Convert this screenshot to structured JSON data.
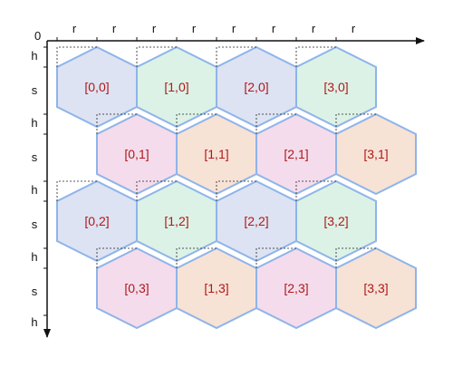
{
  "diagram": {
    "origin_label": "0",
    "top_axis_labels": [
      "r",
      "r",
      "r",
      "r",
      "r",
      "r",
      "r",
      "r"
    ],
    "left_axis_labels": [
      "h",
      "s",
      "h",
      "s",
      "h",
      "s",
      "h",
      "s",
      "h"
    ],
    "cells": [
      {
        "col": 0,
        "row": 0,
        "label": "[0,0]",
        "fill": "#dde3f2"
      },
      {
        "col": 1,
        "row": 0,
        "label": "[1,0]",
        "fill": "#dcf2e6"
      },
      {
        "col": 2,
        "row": 0,
        "label": "[2,0]",
        "fill": "#dde3f2"
      },
      {
        "col": 3,
        "row": 0,
        "label": "[3,0]",
        "fill": "#dcf2e6"
      },
      {
        "col": 0,
        "row": 1,
        "label": "[0,1]",
        "fill": "#f4dcec"
      },
      {
        "col": 1,
        "row": 1,
        "label": "[1,1]",
        "fill": "#f7e2d6"
      },
      {
        "col": 2,
        "row": 1,
        "label": "[2,1]",
        "fill": "#f4dcec"
      },
      {
        "col": 3,
        "row": 1,
        "label": "[3,1]",
        "fill": "#f7e2d6"
      },
      {
        "col": 0,
        "row": 2,
        "label": "[0,2]",
        "fill": "#dde3f2"
      },
      {
        "col": 1,
        "row": 2,
        "label": "[1,2]",
        "fill": "#dcf2e6"
      },
      {
        "col": 2,
        "row": 2,
        "label": "[2,2]",
        "fill": "#dde3f2"
      },
      {
        "col": 3,
        "row": 2,
        "label": "[3,2]",
        "fill": "#dcf2e6"
      },
      {
        "col": 0,
        "row": 3,
        "label": "[0,3]",
        "fill": "#f4dcec"
      },
      {
        "col": 1,
        "row": 3,
        "label": "[1,3]",
        "fill": "#f7e2d6"
      },
      {
        "col": 2,
        "row": 3,
        "label": "[2,3]",
        "fill": "#f4dcec"
      },
      {
        "col": 3,
        "row": 3,
        "label": "[3,3]",
        "fill": "#f7e2d6"
      }
    ],
    "colors": {
      "hex_stroke": "#8eb4ea",
      "label_text": "#b01818",
      "axis": "#111111"
    }
  }
}
